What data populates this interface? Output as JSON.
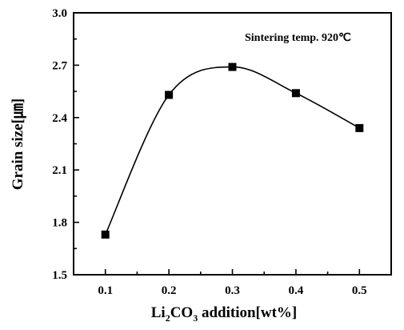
{
  "chart_data": {
    "type": "line",
    "annotation": "Sintering temp. 920℃",
    "xlabel": {
      "prefix": "Li",
      "sub1": "2",
      "mid": "CO",
      "sub2": "3",
      "suffix": " addition[wt%]"
    },
    "ylabel": "Grain size[㎛]",
    "x_ticks": [
      "0.1",
      "0.2",
      "0.3",
      "0.4",
      "0.5"
    ],
    "y_ticks": [
      "1.5",
      "1.8",
      "2.1",
      "2.4",
      "2.7",
      "3.0"
    ],
    "xlim": [
      0.05,
      0.55
    ],
    "ylim": [
      1.5,
      3.0
    ],
    "grid": false,
    "series": [
      {
        "x": [
          0.1,
          0.2,
          0.3,
          0.4,
          0.5
        ],
        "values": [
          1.73,
          2.53,
          2.69,
          2.54,
          2.34
        ],
        "marker": "square",
        "smooth": true
      }
    ]
  }
}
